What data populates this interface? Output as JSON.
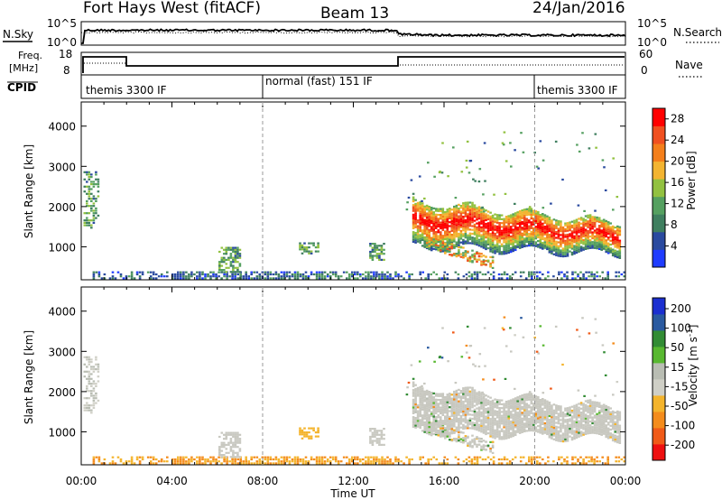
{
  "header": {
    "station": "Fort Hays West (fitACF)",
    "beam": "Beam 13",
    "date": "24/Jan/2016"
  },
  "top_panel": {
    "left_label": "N.Sky",
    "left_ticks": [
      "10^5",
      "10^0"
    ],
    "right_ticks": [
      "10^5",
      "10^0"
    ],
    "right_label": "N.Search"
  },
  "freq_panel": {
    "left_label_line1": "Freq.",
    "left_label_line2": "[MHz]",
    "left_ticks": [
      "18",
      "8"
    ],
    "right_ticks": [
      "60",
      "0"
    ],
    "right_label": "Nave"
  },
  "cpid_panel": {
    "label": "CPID",
    "segments": [
      {
        "text": "themis 3300 IF",
        "start_hour": 0
      },
      {
        "text": "normal (fast) 151 IF",
        "start_hour": 8
      },
      {
        "text": "themis 3300 IF",
        "start_hour": 20
      }
    ]
  },
  "colors": {
    "power_scale": [
      "#1f3cff",
      "#2a4a9f",
      "#3f7f5f",
      "#55a060",
      "#92c140",
      "#f3b431",
      "#f47f1b",
      "#f05020",
      "#ff0000"
    ],
    "velocity_scale": [
      "#ee1010",
      "#f05a18",
      "#f48c1c",
      "#f4b42c",
      "#cfcfc6",
      "#b9bdb3",
      "#58b830",
      "#328c34",
      "#2a5aa0",
      "#1b2fd0"
    ],
    "gray": "#c8c8c0"
  },
  "chart_data": [
    {
      "type": "heatmap",
      "title": "",
      "xlabel": "Time UT",
      "ylabel": "Slant Range [km]",
      "xlim": [
        0,
        24
      ],
      "ylim": [
        180,
        4600
      ],
      "xticks": [
        "00:00",
        "04:00",
        "08:00",
        "12:00",
        "16:00",
        "20:00",
        "00:00"
      ],
      "yticks": [
        1000,
        2000,
        3000,
        4000
      ],
      "colorbar": {
        "label": "Power [dB]",
        "ticks": [
          4,
          8,
          12,
          16,
          20,
          24,
          28
        ],
        "range": [
          0,
          30
        ]
      },
      "features": [
        {
          "name": "main echo band",
          "t_start": 14.6,
          "t_end": 23.8,
          "range_center_start": 1700,
          "range_center_end": 1300,
          "peak_power_db": 28
        },
        {
          "name": "early echoes",
          "t_start": 0.1,
          "t_end": 0.6,
          "range_low": 1600,
          "range_high": 2800,
          "peak_power_db": 14
        },
        {
          "name": "near-range scatter",
          "t_start": 0.5,
          "t_end": 24,
          "range_low": 180,
          "range_high": 400,
          "peak_power_db": 10
        }
      ]
    },
    {
      "type": "heatmap",
      "title": "",
      "xlabel": "Time UT",
      "ylabel": "Slant Range [km]",
      "xlim": [
        0,
        24
      ],
      "ylim": [
        180,
        4600
      ],
      "xticks": [
        "00:00",
        "04:00",
        "08:00",
        "12:00",
        "16:00",
        "20:00",
        "00:00"
      ],
      "yticks": [
        1000,
        2000,
        3000,
        4000
      ],
      "colorbar": {
        "label": "Velocity [m s^-1]",
        "ticks": [
          200,
          100,
          50,
          15,
          -15,
          -50,
          -100,
          -200
        ],
        "range": [
          -250,
          250
        ]
      },
      "features": [
        {
          "name": "main echo band (near-zero velocity, ground scatter)",
          "t_start": 14.6,
          "t_end": 23.8,
          "velocity_ms": 0
        },
        {
          "name": "near-range scatter",
          "t_start": 0.5,
          "t_end": 24,
          "velocity_ms": -40
        }
      ]
    }
  ]
}
